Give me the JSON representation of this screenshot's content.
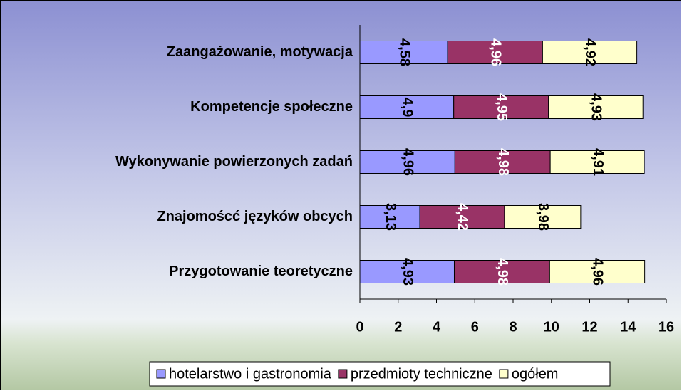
{
  "chart_data": {
    "type": "stacked-bar-horizontal",
    "categories": [
      "Zaangażowanie, motywacja",
      "Kompetencje społeczne",
      "Wykonywanie powierzonych zadań",
      "Znajomoścć języków obcych",
      "Przygotowanie teoretyczne"
    ],
    "series": [
      {
        "name": "hotelarstwo i gastronomia",
        "color": "#9999ff",
        "values": [
          4.58,
          4.9,
          4.96,
          3.13,
          4.93
        ],
        "value_labels": [
          "4,58",
          "4,9",
          "4,96",
          "3,13",
          "4,93"
        ]
      },
      {
        "name": "przedmioty techniczne",
        "color": "#993366",
        "values": [
          4.96,
          4.95,
          4.98,
          4.42,
          4.98
        ],
        "value_labels": [
          "4,96",
          "4,95",
          "4,98",
          "4,42",
          "4,98"
        ]
      },
      {
        "name": "ogółem",
        "color": "#ffffcc",
        "values": [
          4.92,
          4.93,
          4.91,
          3.98,
          4.96
        ],
        "value_labels": [
          "4,92",
          "4,93",
          "4,91",
          "3,98",
          "4,96"
        ]
      }
    ],
    "xlim": [
      0,
      16
    ],
    "xticks": [
      0,
      2,
      4,
      6,
      8,
      10,
      12,
      14,
      16
    ],
    "legend": "bottom"
  }
}
